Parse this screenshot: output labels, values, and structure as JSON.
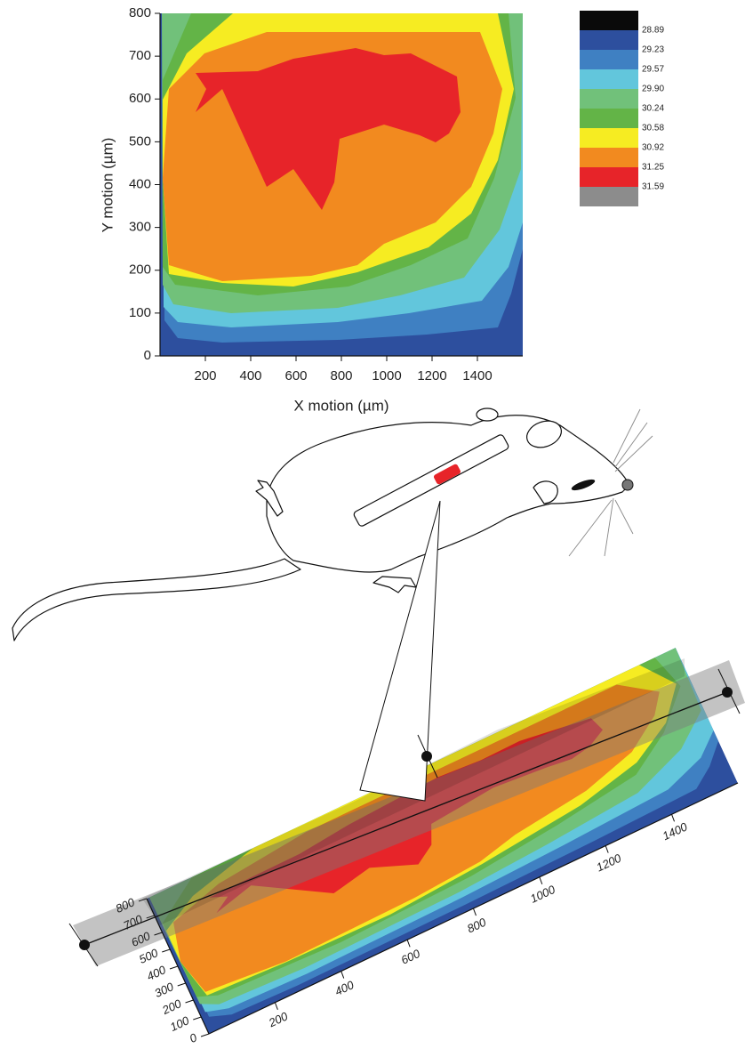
{
  "chart_data": {
    "type": "contour",
    "xlabel": "X motion (µm)",
    "ylabel": "Y motion (µm)",
    "xlim": [
      0,
      1600
    ],
    "ylim": [
      0,
      800
    ],
    "xticks": [
      200,
      400,
      600,
      800,
      1000,
      1200,
      1400
    ],
    "yticks": [
      0,
      100,
      200,
      300,
      400,
      500,
      600,
      700,
      800
    ],
    "levels": [
      28.89,
      29.23,
      29.57,
      29.9,
      30.24,
      30.58,
      30.92,
      31.25,
      31.59
    ],
    "level_labels": [
      "28.89",
      "29.23",
      "29.57",
      "29.90",
      "30.24",
      "30.58",
      "30.92",
      "31.25",
      "31.59"
    ],
    "colors": [
      "#0a0a0a",
      "#2d4f9e",
      "#3f80c2",
      "#62c6dc",
      "#71c17a",
      "#63b447",
      "#f6ec22",
      "#f28a1f",
      "#e72429",
      "#8c8c8c"
    ]
  }
}
